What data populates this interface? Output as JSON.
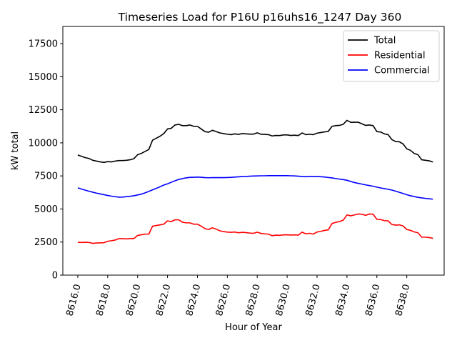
{
  "chart_data": {
    "type": "line",
    "title": "Timeseries Load for P16U p16uhs16_1247  Day 360",
    "xlabel": "Hour of Year",
    "ylabel": "kW total",
    "xlim": [
      8615.0,
      8640.5
    ],
    "ylim": [
      0,
      18800
    ],
    "xticks": [
      8616,
      8618,
      8620,
      8622,
      8624,
      8626,
      8628,
      8630,
      8632,
      8634,
      8636,
      8638
    ],
    "xtick_labels": [
      "8616.0",
      "8618.0",
      "8620.0",
      "8622.0",
      "8624.0",
      "8626.0",
      "8628.0",
      "8630.0",
      "8632.0",
      "8634.0",
      "8636.0",
      "8638.0"
    ],
    "yticks": [
      0,
      2500,
      5000,
      7500,
      10000,
      12500,
      15000,
      17500
    ],
    "ytick_labels": [
      "0",
      "2500",
      "5000",
      "7500",
      "10000",
      "12500",
      "15000",
      "17500"
    ],
    "legend_position": "top-right",
    "x": [
      8616.0,
      8616.25,
      8616.5,
      8616.75,
      8617.0,
      8617.25,
      8617.5,
      8617.75,
      8618.0,
      8618.25,
      8618.5,
      8618.75,
      8619.0,
      8619.25,
      8619.5,
      8619.75,
      8620.0,
      8620.25,
      8620.5,
      8620.75,
      8621.0,
      8621.25,
      8621.5,
      8621.75,
      8622.0,
      8622.25,
      8622.5,
      8622.75,
      8623.0,
      8623.25,
      8623.5,
      8623.75,
      8624.0,
      8624.25,
      8624.5,
      8624.75,
      8625.0,
      8625.25,
      8625.5,
      8625.75,
      8626.0,
      8626.25,
      8626.5,
      8626.75,
      8627.0,
      8627.25,
      8627.5,
      8627.75,
      8628.0,
      8628.25,
      8628.5,
      8628.75,
      8629.0,
      8629.25,
      8629.5,
      8629.75,
      8630.0,
      8630.25,
      8630.5,
      8630.75,
      8631.0,
      8631.25,
      8631.5,
      8631.75,
      8632.0,
      8632.25,
      8632.5,
      8632.75,
      8633.0,
      8633.25,
      8633.5,
      8633.75,
      8634.0,
      8634.25,
      8634.5,
      8634.75,
      8635.0,
      8635.25,
      8635.5,
      8635.75,
      8636.0,
      8636.25,
      8636.5,
      8636.75,
      8637.0,
      8637.25,
      8637.5,
      8637.75,
      8638.0,
      8638.25,
      8638.5,
      8638.75,
      8639.0,
      8639.25,
      8639.5,
      8639.75
    ],
    "series": [
      {
        "name": "Total",
        "color": "#000000",
        "values": [
          9080,
          8980,
          8880,
          8820,
          8680,
          8620,
          8560,
          8520,
          8580,
          8560,
          8620,
          8660,
          8660,
          8680,
          8720,
          8800,
          9100,
          9200,
          9350,
          9500,
          10200,
          10350,
          10500,
          10700,
          11050,
          11100,
          11350,
          11400,
          11300,
          11300,
          11350,
          11250,
          11250,
          11050,
          10850,
          10800,
          10950,
          10850,
          10750,
          10700,
          10650,
          10620,
          10680,
          10640,
          10700,
          10680,
          10660,
          10660,
          10760,
          10650,
          10640,
          10620,
          10520,
          10560,
          10550,
          10600,
          10600,
          10560,
          10580,
          10550,
          10750,
          10620,
          10650,
          10620,
          10730,
          10780,
          10830,
          10860,
          11250,
          11300,
          11320,
          11400,
          11700,
          11550,
          11560,
          11560,
          11440,
          11320,
          11350,
          11300,
          10850,
          10820,
          10680,
          10620,
          10250,
          10100,
          10080,
          9920,
          9550,
          9430,
          9200,
          9100,
          8720,
          8680,
          8640,
          8550
        ]
      },
      {
        "name": "Residential",
        "color": "#ff0000",
        "values": [
          2480,
          2470,
          2480,
          2470,
          2400,
          2430,
          2440,
          2450,
          2560,
          2600,
          2650,
          2760,
          2760,
          2740,
          2760,
          2760,
          3000,
          3050,
          3100,
          3100,
          3700,
          3750,
          3800,
          3850,
          4100,
          4050,
          4180,
          4180,
          4000,
          3950,
          3950,
          3850,
          3850,
          3700,
          3520,
          3450,
          3580,
          3480,
          3350,
          3290,
          3250,
          3240,
          3260,
          3200,
          3240,
          3210,
          3180,
          3160,
          3250,
          3150,
          3120,
          3100,
          2980,
          3020,
          3010,
          3040,
          3050,
          3030,
          3040,
          3020,
          3250,
          3120,
          3160,
          3100,
          3260,
          3310,
          3380,
          3420,
          3900,
          3990,
          4050,
          4150,
          4550,
          4480,
          4550,
          4620,
          4600,
          4520,
          4620,
          4600,
          4220,
          4200,
          4120,
          4100,
          3830,
          3780,
          3800,
          3720,
          3450,
          3380,
          3270,
          3200,
          2870,
          2870,
          2840,
          2780
        ]
      },
      {
        "name": "Commercial",
        "color": "#0000ff",
        "values": [
          6600,
          6510,
          6420,
          6340,
          6270,
          6200,
          6140,
          6080,
          6020,
          5970,
          5930,
          5890,
          5900,
          5930,
          5960,
          6000,
          6060,
          6120,
          6220,
          6330,
          6450,
          6560,
          6680,
          6810,
          6900,
          7020,
          7130,
          7230,
          7300,
          7350,
          7390,
          7400,
          7410,
          7400,
          7370,
          7360,
          7370,
          7370,
          7370,
          7370,
          7380,
          7390,
          7410,
          7430,
          7450,
          7460,
          7480,
          7490,
          7500,
          7510,
          7510,
          7520,
          7520,
          7520,
          7520,
          7520,
          7520,
          7510,
          7500,
          7480,
          7460,
          7440,
          7460,
          7460,
          7450,
          7440,
          7420,
          7380,
          7350,
          7300,
          7260,
          7220,
          7170,
          7080,
          7000,
          6940,
          6880,
          6820,
          6770,
          6720,
          6650,
          6590,
          6540,
          6490,
          6430,
          6350,
          6260,
          6170,
          6080,
          6000,
          5940,
          5880,
          5840,
          5800,
          5770,
          5740
        ]
      }
    ]
  }
}
